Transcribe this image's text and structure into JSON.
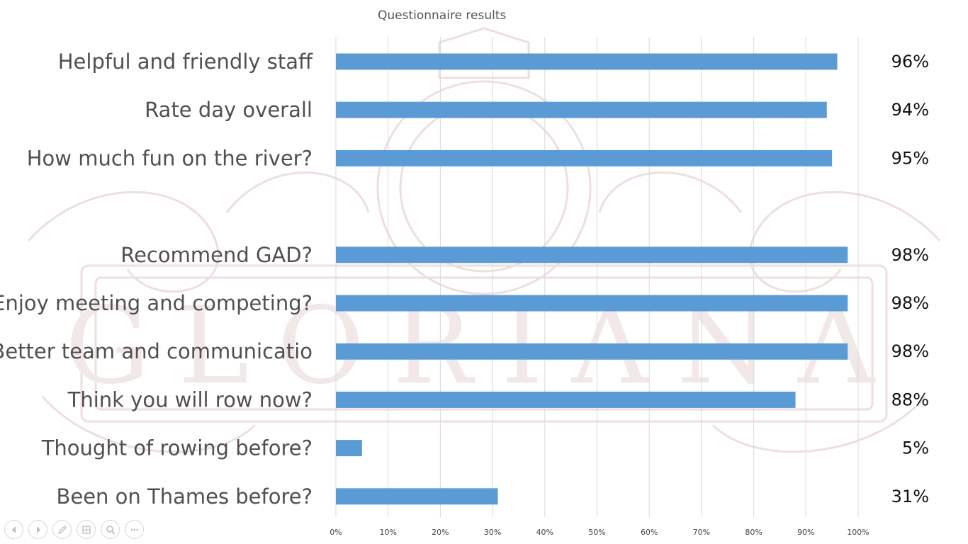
{
  "chart_data": {
    "type": "bar",
    "orientation": "horizontal",
    "title": "Questionnaire results",
    "categories": [
      "Helpful and friendly staff",
      "Rate day overall",
      "How much fun on the river?",
      "",
      "Recommend GAD?",
      "Enjoy meeting and competing?",
      "Better team and communicatio",
      "Think you will row now?",
      "Thought of rowing before?",
      "Been on Thames before?"
    ],
    "values": [
      96,
      94,
      95,
      null,
      98,
      98,
      98,
      88,
      5,
      31
    ],
    "value_labels": [
      "96%",
      "94%",
      "95%",
      "",
      "98%",
      "98%",
      "98%",
      "88%",
      "5%",
      "31%"
    ],
    "xlim": [
      0,
      100
    ],
    "x_ticks": [
      0,
      10,
      20,
      30,
      40,
      50,
      60,
      70,
      80,
      90,
      100
    ],
    "x_tick_labels": [
      "0%",
      "10%",
      "20%",
      "30%",
      "40%",
      "50%",
      "60%",
      "70%",
      "80%",
      "90%",
      "100%"
    ],
    "grid": "vertical",
    "bar_color": "#5b9bd5",
    "legend": "none"
  },
  "watermark": {
    "text": "GLORIANA",
    "color": "#e9d9d9"
  },
  "controls": [
    {
      "name": "previous-slide",
      "icon": "arrow-left-icon"
    },
    {
      "name": "next-slide",
      "icon": "arrow-right-icon"
    },
    {
      "name": "pen-tool",
      "icon": "pen-icon"
    },
    {
      "name": "see-all-slides",
      "icon": "slides-grid-icon"
    },
    {
      "name": "zoom",
      "icon": "magnifier-icon"
    },
    {
      "name": "more-options",
      "icon": "ellipsis-icon"
    }
  ]
}
